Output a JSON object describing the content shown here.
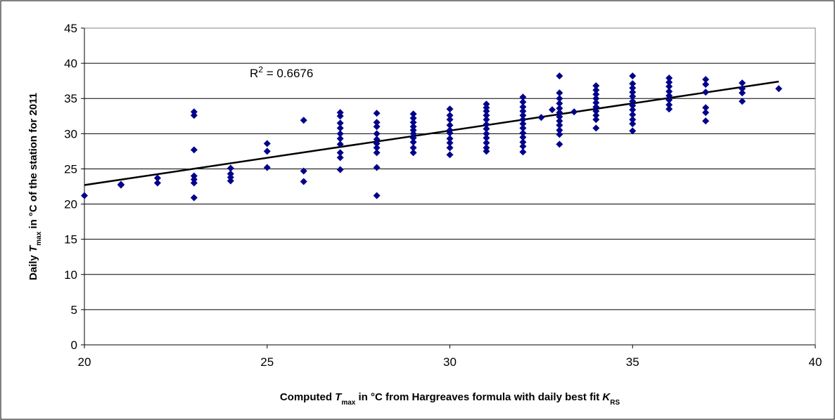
{
  "chart_data": {
    "type": "scatter",
    "x_label_parts": [
      "Computed ",
      "T",
      "max",
      " in °C from Hargreaves formula with daily best fit ",
      "K",
      "RS"
    ],
    "y_label_parts": [
      "Daily ",
      "T",
      "max",
      " in °C of the station for 2011"
    ],
    "annotation_parts": [
      "R",
      "2",
      " = 0.6676"
    ],
    "xlim": [
      20,
      40
    ],
    "ylim": [
      0,
      45
    ],
    "xticks": [
      20,
      25,
      30,
      35,
      40
    ],
    "yticks": [
      0,
      5,
      10,
      15,
      20,
      25,
      30,
      35,
      40,
      45
    ],
    "grid": true,
    "trendline": {
      "color": "#000000",
      "x": [
        20,
        39
      ],
      "y": [
        22.7,
        37.4
      ]
    },
    "series": [
      {
        "color": "#00008B",
        "x": [
          20,
          21,
          21,
          22,
          22,
          23,
          23,
          23,
          23,
          23,
          23,
          23,
          24,
          24,
          24,
          24,
          25,
          25,
          25,
          26,
          26,
          26,
          27,
          27,
          27,
          27,
          27,
          27,
          27,
          27,
          27,
          27,
          28,
          28,
          28,
          28,
          28,
          28,
          28,
          28,
          28,
          28,
          29,
          29,
          29,
          29,
          29,
          29,
          29,
          29,
          29,
          29,
          30,
          30,
          30,
          30,
          30,
          30,
          30,
          30,
          30,
          30,
          31,
          31,
          31,
          31,
          31,
          31,
          31,
          31,
          31,
          31,
          31,
          31,
          32,
          32,
          32,
          32,
          32,
          32,
          32,
          32,
          32,
          32,
          32,
          32,
          32,
          32.5,
          32.8,
          33,
          33,
          33,
          33,
          33,
          33,
          33,
          33,
          33,
          33,
          33,
          33,
          33.4,
          34,
          34,
          34,
          34,
          34,
          34,
          34,
          34,
          34,
          34,
          35,
          35,
          35,
          35,
          35,
          35,
          35,
          35,
          35,
          35,
          35,
          35,
          36,
          36,
          36,
          36,
          36,
          36,
          36,
          36,
          37,
          37,
          37,
          37,
          37,
          37,
          38,
          38,
          38,
          38,
          39
        ],
        "values": [
          21.2,
          22.8,
          22.7,
          23.7,
          23.0,
          33.1,
          32.6,
          27.7,
          24.0,
          23.5,
          23.0,
          20.9,
          25.1,
          24.3,
          23.8,
          23.3,
          28.6,
          27.5,
          25.2,
          31.9,
          24.7,
          23.2,
          33.0,
          32.5,
          31.5,
          30.8,
          30.0,
          29.3,
          28.5,
          27.3,
          26.6,
          24.9,
          32.9,
          31.6,
          31.0,
          30.0,
          29.2,
          28.6,
          28.0,
          27.3,
          25.2,
          21.2,
          32.8,
          32.2,
          31.6,
          31.0,
          30.5,
          30.0,
          29.4,
          28.8,
          28.0,
          27.3,
          33.5,
          32.6,
          32.0,
          31.2,
          30.5,
          30.1,
          29.3,
          28.7,
          28.0,
          27.0,
          34.2,
          33.7,
          33.2,
          32.6,
          32.0,
          31.3,
          30.7,
          30.0,
          29.4,
          28.7,
          28.0,
          27.5,
          35.2,
          34.5,
          33.8,
          33.2,
          32.6,
          32.0,
          31.4,
          30.8,
          30.1,
          29.5,
          28.8,
          28.2,
          27.4,
          32.3,
          33.4,
          38.2,
          35.8,
          35.0,
          34.3,
          33.6,
          33.0,
          32.4,
          31.8,
          31.2,
          30.5,
          29.9,
          28.5,
          33.1,
          36.8,
          36.2,
          35.6,
          35.0,
          34.4,
          33.8,
          33.2,
          32.6,
          32.0,
          30.8,
          38.2,
          37.1,
          36.5,
          35.9,
          35.3,
          34.6,
          34.0,
          33.4,
          32.7,
          32.0,
          31.4,
          30.4,
          37.9,
          37.3,
          36.7,
          36.0,
          35.4,
          34.8,
          34.1,
          33.5,
          37.7,
          37.0,
          35.9,
          33.7,
          33.0,
          31.8,
          37.2,
          36.4,
          35.8,
          34.6,
          36.4
        ]
      }
    ]
  }
}
